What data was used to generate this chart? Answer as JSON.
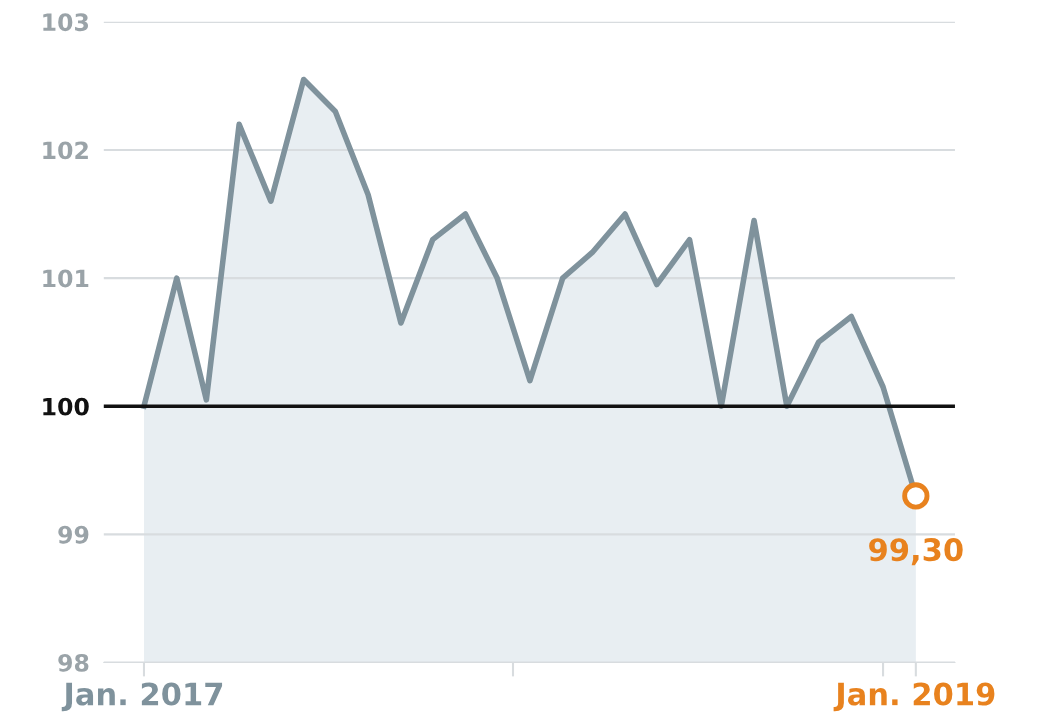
{
  "chart_data": {
    "type": "area",
    "x": [
      "2017-01",
      "2017-02",
      "2017-03",
      "2017-04",
      "2017-05",
      "2017-06",
      "2017-07",
      "2017-08",
      "2017-09",
      "2017-10",
      "2017-11",
      "2017-12",
      "2018-01",
      "2018-02",
      "2018-03",
      "2018-04",
      "2018-05",
      "2018-06",
      "2018-07",
      "2018-08",
      "2018-09",
      "2018-10",
      "2018-11",
      "2018-12",
      "2019-01"
    ],
    "series": [
      {
        "color": "#7f929c",
        "values": [
          100.0,
          101.0,
          100.05,
          102.2,
          101.6,
          102.55,
          102.3,
          101.65,
          100.65,
          101.3,
          101.5,
          101.0,
          100.2,
          101.0,
          101.2,
          101.5,
          100.95,
          101.3,
          100.0,
          101.45,
          100.0,
          100.5,
          100.7,
          100.15,
          99.3
        ]
      },
      {
        "type": "scatter",
        "marker": "circle",
        "color": "#e8821e",
        "x": [
          "2019-01"
        ],
        "values": [
          99.3
        ]
      }
    ],
    "ylim": [
      98,
      103
    ],
    "yticks": [
      98,
      99,
      100,
      101,
      102,
      103
    ],
    "xlim": [
      "2016-11-24",
      "2019-02-07"
    ],
    "xticks": [
      {
        "value": "2017-01",
        "label": "Jan. 2017"
      },
      {
        "value": "2017-12-16",
        "label": null
      },
      {
        "value": "2018-12",
        "label": null
      },
      {
        "value": "2019-01",
        "label": "Jan. 2019"
      }
    ],
    "ref_lines": [
      {
        "axis": "y",
        "value": 100,
        "color": "#111111"
      }
    ],
    "annotations": [
      {
        "text": "99,30",
        "x": "2019-01",
        "y": 99.3
      }
    ],
    "grid": "y"
  }
}
